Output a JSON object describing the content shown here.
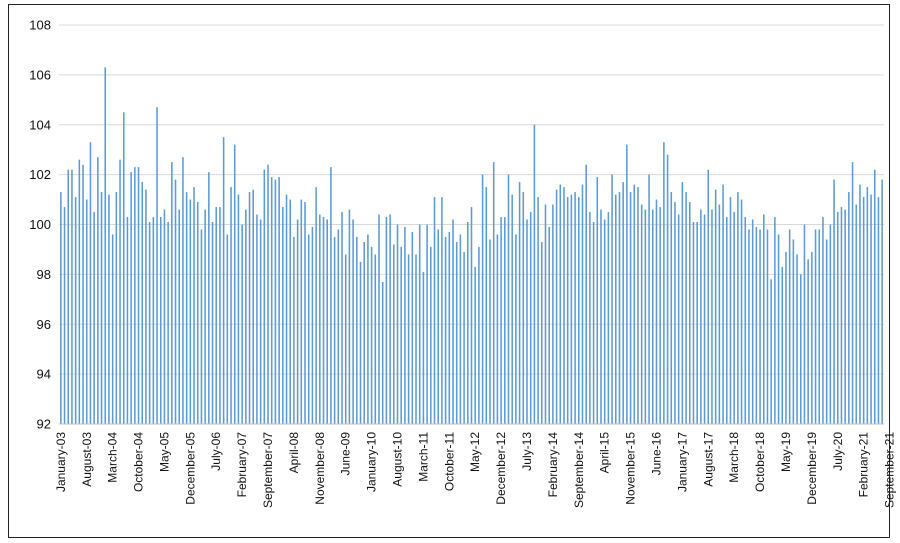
{
  "chart_data": {
    "type": "bar",
    "title": "",
    "xlabel": "",
    "ylabel": "",
    "ylim": [
      92,
      108
    ],
    "yticks": [
      92,
      94,
      96,
      98,
      100,
      102,
      104,
      106,
      108
    ],
    "grid": true,
    "bar_color": "#5b9bd5",
    "grid_color": "#d9d9d9",
    "start": "2003-01",
    "categories_shown": [
      "January-03",
      "August-03",
      "March-04",
      "October-04",
      "May-05",
      "December-05",
      "July-06",
      "February-07",
      "September-07",
      "April-08",
      "November-08",
      "June-09",
      "January-10",
      "August-10",
      "March-11",
      "October-11",
      "May-12",
      "December-12",
      "July-13",
      "February-14",
      "September-14",
      "April-15",
      "November-15",
      "June-16",
      "January-17",
      "August-17",
      "March-18",
      "October-18",
      "May-19",
      "December-19",
      "July-20",
      "February-21",
      "September-21"
    ],
    "values": [
      101.3,
      100.7,
      102.2,
      102.2,
      101.1,
      102.6,
      102.4,
      101.0,
      103.3,
      100.5,
      102.7,
      101.3,
      106.3,
      101.2,
      99.6,
      101.3,
      102.6,
      104.5,
      100.3,
      102.1,
      102.3,
      102.3,
      101.7,
      101.4,
      100.1,
      100.3,
      104.7,
      100.3,
      100.6,
      100.1,
      102.5,
      101.8,
      100.6,
      102.7,
      101.3,
      101.0,
      101.5,
      100.9,
      99.8,
      100.6,
      102.1,
      100.1,
      100.7,
      100.7,
      103.5,
      99.6,
      101.5,
      103.2,
      101.2,
      100.0,
      100.6,
      101.3,
      101.4,
      100.4,
      100.2,
      102.2,
      102.4,
      101.9,
      101.8,
      101.9,
      100.7,
      101.2,
      101.0,
      99.5,
      100.2,
      101.0,
      100.9,
      99.6,
      99.9,
      101.5,
      100.4,
      100.3,
      100.2,
      102.3,
      99.5,
      99.8,
      100.5,
      98.8,
      100.6,
      100.2,
      99.5,
      98.5,
      99.3,
      99.6,
      99.1,
      98.8,
      100.4,
      97.7,
      100.3,
      100.4,
      99.2,
      100.0,
      99.1,
      99.9,
      98.8,
      99.7,
      98.8,
      100.0,
      98.1,
      100.0,
      99.1,
      101.1,
      99.8,
      101.1,
      99.5,
      99.7,
      100.2,
      99.3,
      99.6,
      98.9,
      100.1,
      100.7,
      98.3,
      99.1,
      102.0,
      101.5,
      99.4,
      102.5,
      99.6,
      100.3,
      100.3,
      102.0,
      101.2,
      99.6,
      101.7,
      101.3,
      100.2,
      100.5,
      104.0,
      101.1,
      99.3,
      100.8,
      99.9,
      100.8,
      101.4,
      101.6,
      101.5,
      101.1,
      101.2,
      101.3,
      101.1,
      101.6,
      102.4,
      100.5,
      100.1,
      101.9,
      100.6,
      100.2,
      100.5,
      102.0,
      101.2,
      101.3,
      101.7,
      103.2,
      101.3,
      101.6,
      101.5,
      100.8,
      100.6,
      102.0,
      100.6,
      101.0,
      100.7,
      103.3,
      102.8,
      101.3,
      100.9,
      100.4,
      101.7,
      101.3,
      100.9,
      100.1,
      100.1,
      100.6,
      100.4,
      102.2,
      100.6,
      101.4,
      100.8,
      101.6,
      100.3,
      101.1,
      100.5,
      101.3,
      101.0,
      100.3,
      99.8,
      100.2,
      99.9,
      99.8,
      100.4,
      99.8,
      97.8,
      100.3,
      99.6,
      98.3,
      98.9,
      99.8,
      99.4,
      98.8,
      98.0,
      100.0,
      98.6,
      98.9,
      99.8,
      99.8,
      100.3,
      99.4,
      100.0,
      101.8,
      100.5,
      100.7,
      100.6,
      101.3,
      102.5,
      100.8,
      101.6,
      101.1,
      101.5,
      101.2,
      102.2,
      101.1,
      101.8
    ]
  }
}
